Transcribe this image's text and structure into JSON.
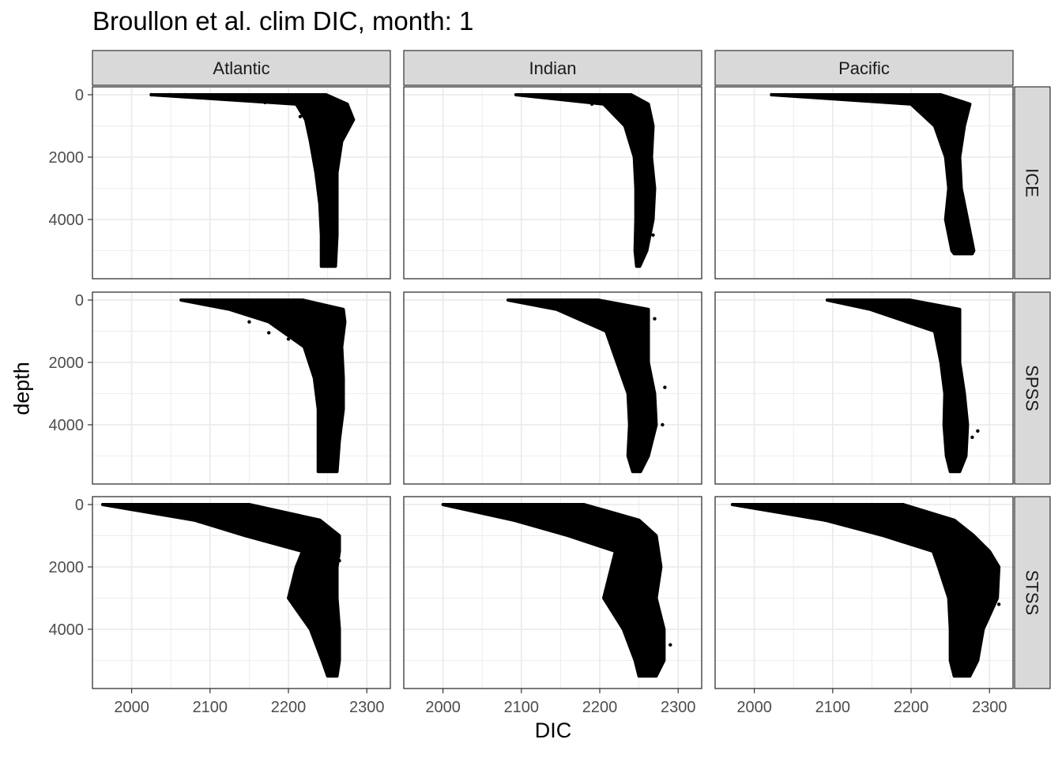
{
  "chart_data": {
    "type": "scatter",
    "title": "Broullon et al. clim DIC, month: 1",
    "xlabel": "DIC",
    "ylabel": "depth",
    "xlim": [
      1950,
      2330
    ],
    "ylim": [
      0,
      5900
    ],
    "y_reversed": true,
    "x_ticks": [
      2000,
      2100,
      2200,
      2300
    ],
    "y_ticks": [
      0,
      2000,
      4000
    ],
    "grid": true,
    "facet_columns": [
      "Atlantic",
      "Indian",
      "Pacific"
    ],
    "facet_rows": [
      "ICE",
      "SPSS",
      "STSS"
    ],
    "point_color": "#000000",
    "panels": [
      {
        "column": "Atlantic",
        "row": "ICE",
        "profile": [
          {
            "depth": 0,
            "min": 2025,
            "max": 2248
          },
          {
            "depth": 300,
            "min": 2210,
            "max": 2275
          },
          {
            "depth": 800,
            "min": 2222,
            "max": 2283
          },
          {
            "depth": 1500,
            "min": 2228,
            "max": 2268
          },
          {
            "depth": 2500,
            "min": 2235,
            "max": 2262
          },
          {
            "depth": 3500,
            "min": 2240,
            "max": 2262
          },
          {
            "depth": 4500,
            "min": 2242,
            "max": 2262
          },
          {
            "depth": 5500,
            "min": 2242,
            "max": 2260
          }
        ],
        "outliers": [
          [
            2025,
            0
          ],
          [
            2048,
            0
          ],
          [
            2068,
            0
          ],
          [
            2170,
            250
          ],
          [
            2215,
            700
          ]
        ]
      },
      {
        "column": "Indian",
        "row": "ICE",
        "profile": [
          {
            "depth": 0,
            "min": 2093,
            "max": 2240
          },
          {
            "depth": 300,
            "min": 2205,
            "max": 2262
          },
          {
            "depth": 1000,
            "min": 2232,
            "max": 2268
          },
          {
            "depth": 2000,
            "min": 2244,
            "max": 2266
          },
          {
            "depth": 3000,
            "min": 2246,
            "max": 2270
          },
          {
            "depth": 4000,
            "min": 2246,
            "max": 2268
          },
          {
            "depth": 5000,
            "min": 2245,
            "max": 2260
          },
          {
            "depth": 5500,
            "min": 2247,
            "max": 2251
          }
        ],
        "outliers": [
          [
            2268,
            4500
          ],
          [
            2212,
            450
          ],
          [
            2190,
            300
          ]
        ]
      },
      {
        "column": "Pacific",
        "row": "ICE",
        "profile": [
          {
            "depth": 0,
            "min": 2022,
            "max": 2238
          },
          {
            "depth": 300,
            "min": 2200,
            "max": 2275
          },
          {
            "depth": 1000,
            "min": 2230,
            "max": 2268
          },
          {
            "depth": 2000,
            "min": 2244,
            "max": 2262
          },
          {
            "depth": 3000,
            "min": 2248,
            "max": 2264
          },
          {
            "depth": 4000,
            "min": 2244,
            "max": 2272
          },
          {
            "depth": 5000,
            "min": 2252,
            "max": 2280
          },
          {
            "depth": 5100,
            "min": 2255,
            "max": 2278
          }
        ],
        "outliers": [
          [
            2022,
            0
          ],
          [
            2040,
            0
          ],
          [
            2190,
            230
          ]
        ]
      },
      {
        "column": "Atlantic",
        "row": "SPSS",
        "profile": [
          {
            "depth": 0,
            "min": 2063,
            "max": 2218
          },
          {
            "depth": 300,
            "min": 2125,
            "max": 2270
          },
          {
            "depth": 700,
            "min": 2175,
            "max": 2272
          },
          {
            "depth": 1500,
            "min": 2220,
            "max": 2268
          },
          {
            "depth": 2500,
            "min": 2233,
            "max": 2270
          },
          {
            "depth": 3500,
            "min": 2238,
            "max": 2270
          },
          {
            "depth": 4500,
            "min": 2238,
            "max": 2265
          },
          {
            "depth": 5500,
            "min": 2238,
            "max": 2262
          }
        ],
        "outliers": [
          [
            2175,
            1050
          ],
          [
            2200,
            1250
          ],
          [
            2150,
            700
          ]
        ]
      },
      {
        "column": "Indian",
        "row": "SPSS",
        "profile": [
          {
            "depth": 0,
            "min": 2083,
            "max": 2198
          },
          {
            "depth": 300,
            "min": 2145,
            "max": 2262
          },
          {
            "depth": 1000,
            "min": 2208,
            "max": 2262
          },
          {
            "depth": 2000,
            "min": 2222,
            "max": 2262
          },
          {
            "depth": 3000,
            "min": 2236,
            "max": 2270
          },
          {
            "depth": 4000,
            "min": 2238,
            "max": 2272
          },
          {
            "depth": 5000,
            "min": 2236,
            "max": 2262
          },
          {
            "depth": 5500,
            "min": 2242,
            "max": 2252
          }
        ],
        "outliers": [
          [
            2283,
            2800
          ],
          [
            2280,
            4000
          ],
          [
            2270,
            600
          ]
        ]
      },
      {
        "column": "Pacific",
        "row": "SPSS",
        "profile": [
          {
            "depth": 0,
            "min": 2093,
            "max": 2198
          },
          {
            "depth": 300,
            "min": 2148,
            "max": 2262
          },
          {
            "depth": 1000,
            "min": 2230,
            "max": 2262
          },
          {
            "depth": 2000,
            "min": 2238,
            "max": 2262
          },
          {
            "depth": 3000,
            "min": 2243,
            "max": 2268
          },
          {
            "depth": 4000,
            "min": 2242,
            "max": 2272
          },
          {
            "depth": 5000,
            "min": 2245,
            "max": 2270
          },
          {
            "depth": 5500,
            "min": 2250,
            "max": 2262
          }
        ],
        "outliers": [
          [
            2285,
            4200
          ],
          [
            2278,
            4400
          ]
        ]
      },
      {
        "column": "Atlantic",
        "row": "STSS",
        "profile": [
          {
            "depth": 0,
            "min": 1963,
            "max": 2150
          },
          {
            "depth": 500,
            "min": 2080,
            "max": 2240
          },
          {
            "depth": 1000,
            "min": 2145,
            "max": 2265
          },
          {
            "depth": 1500,
            "min": 2218,
            "max": 2265
          },
          {
            "depth": 2000,
            "min": 2210,
            "max": 2262
          },
          {
            "depth": 3000,
            "min": 2200,
            "max": 2262
          },
          {
            "depth": 4000,
            "min": 2228,
            "max": 2265
          },
          {
            "depth": 5000,
            "min": 2243,
            "max": 2265
          },
          {
            "depth": 5500,
            "min": 2250,
            "max": 2262
          }
        ],
        "outliers": [
          [
            2265,
            1800
          ]
        ]
      },
      {
        "column": "Indian",
        "row": "STSS",
        "profile": [
          {
            "depth": 0,
            "min": 2000,
            "max": 2180
          },
          {
            "depth": 500,
            "min": 2090,
            "max": 2250
          },
          {
            "depth": 1000,
            "min": 2160,
            "max": 2272
          },
          {
            "depth": 1500,
            "min": 2220,
            "max": 2275
          },
          {
            "depth": 2000,
            "min": 2215,
            "max": 2278
          },
          {
            "depth": 3000,
            "min": 2205,
            "max": 2272
          },
          {
            "depth": 4000,
            "min": 2230,
            "max": 2282
          },
          {
            "depth": 5000,
            "min": 2245,
            "max": 2282
          },
          {
            "depth": 5500,
            "min": 2250,
            "max": 2272
          }
        ],
        "outliers": [
          [
            2290,
            4500
          ]
        ]
      },
      {
        "column": "Pacific",
        "row": "STSS",
        "profile": [
          {
            "depth": 0,
            "min": 1972,
            "max": 2190
          },
          {
            "depth": 500,
            "min": 2090,
            "max": 2255
          },
          {
            "depth": 1000,
            "min": 2165,
            "max": 2280
          },
          {
            "depth": 1500,
            "min": 2228,
            "max": 2300
          },
          {
            "depth": 2000,
            "min": 2235,
            "max": 2312
          },
          {
            "depth": 3000,
            "min": 2248,
            "max": 2310
          },
          {
            "depth": 4000,
            "min": 2250,
            "max": 2292
          },
          {
            "depth": 5000,
            "min": 2250,
            "max": 2285
          },
          {
            "depth": 5500,
            "min": 2255,
            "max": 2275
          }
        ],
        "outliers": [
          [
            2090,
            500
          ],
          [
            2312,
            3200
          ]
        ]
      }
    ]
  }
}
